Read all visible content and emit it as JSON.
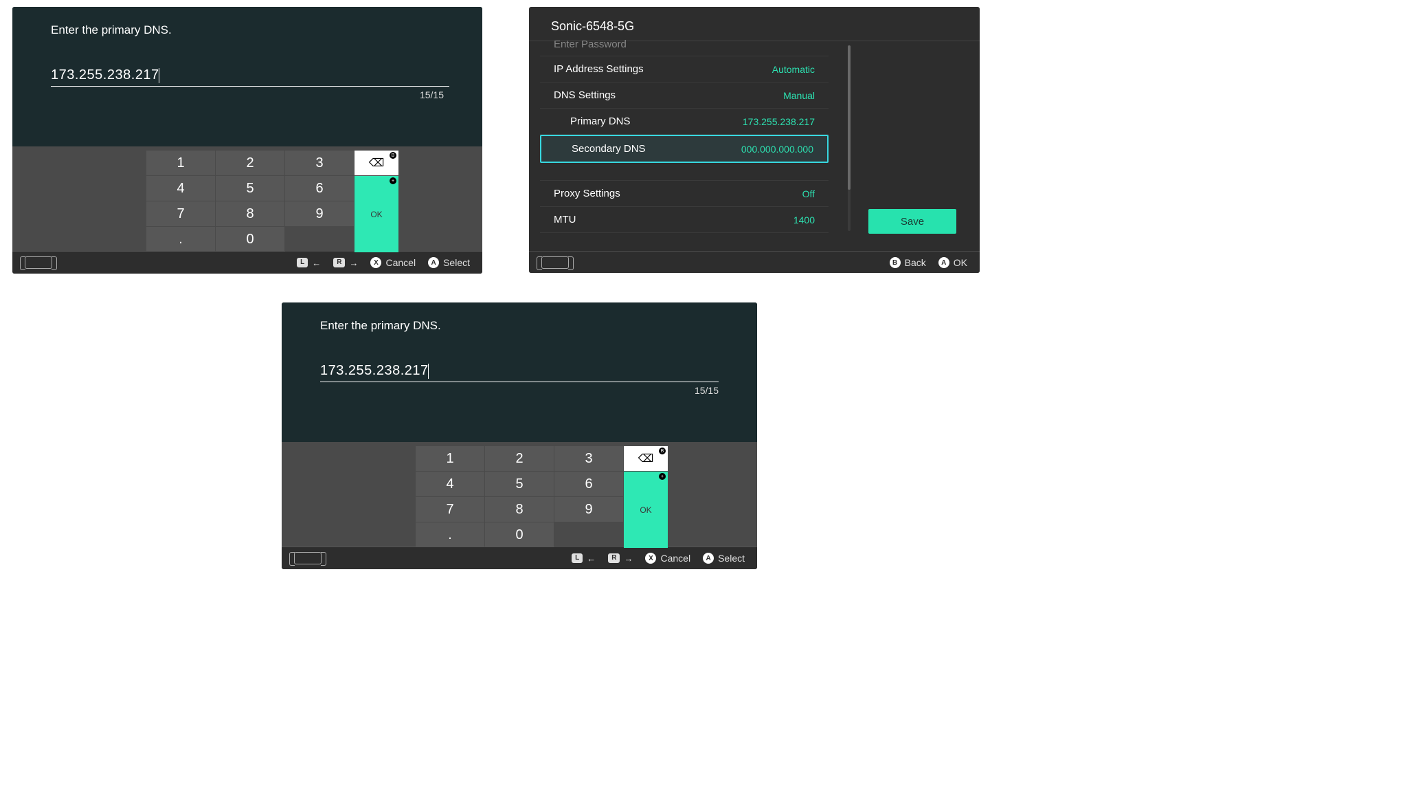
{
  "colors": {
    "bg_dark": "#2d2d2d",
    "bg_darker": "#1b2b2e",
    "keypad_bg": "#4a4a4a",
    "key_bg": "#575757",
    "accent": "#2ee8b4",
    "accent_text": "#2de0b0",
    "highlight_border": "#37d8e0",
    "text": "#ffffff",
    "muted": "#888888"
  },
  "dns_input": {
    "title": "Enter the primary DNS.",
    "value": "173.255.238.217",
    "counter": "15/15",
    "keypad": {
      "rows": [
        [
          "1",
          "2",
          "3"
        ],
        [
          "4",
          "5",
          "6"
        ],
        [
          "7",
          "8",
          "9"
        ],
        [
          ".",
          "0",
          ""
        ]
      ],
      "backspace_label": "⌫",
      "ok_label": "OK"
    },
    "footer": {
      "L_label": "L",
      "R_label": "R",
      "cancel_btn": "X",
      "cancel_label": "Cancel",
      "select_btn": "A",
      "select_label": "Select"
    }
  },
  "settings": {
    "network_name": "Sonic-6548-5G",
    "enter_password_label": "Enter Password",
    "rows": {
      "ip": {
        "label": "IP Address Settings",
        "value": "Automatic"
      },
      "dns": {
        "label": "DNS Settings",
        "value": "Manual"
      },
      "primary": {
        "label": "Primary DNS",
        "value": "173.255.238.217"
      },
      "secondary": {
        "label": "Secondary DNS",
        "value": "000.000.000.000"
      },
      "proxy": {
        "label": "Proxy Settings",
        "value": "Off"
      },
      "mtu": {
        "label": "MTU",
        "value": "1400"
      }
    },
    "save_label": "Save",
    "footer": {
      "back_btn": "B",
      "back_label": "Back",
      "ok_btn": "A",
      "ok_label": "OK"
    }
  }
}
